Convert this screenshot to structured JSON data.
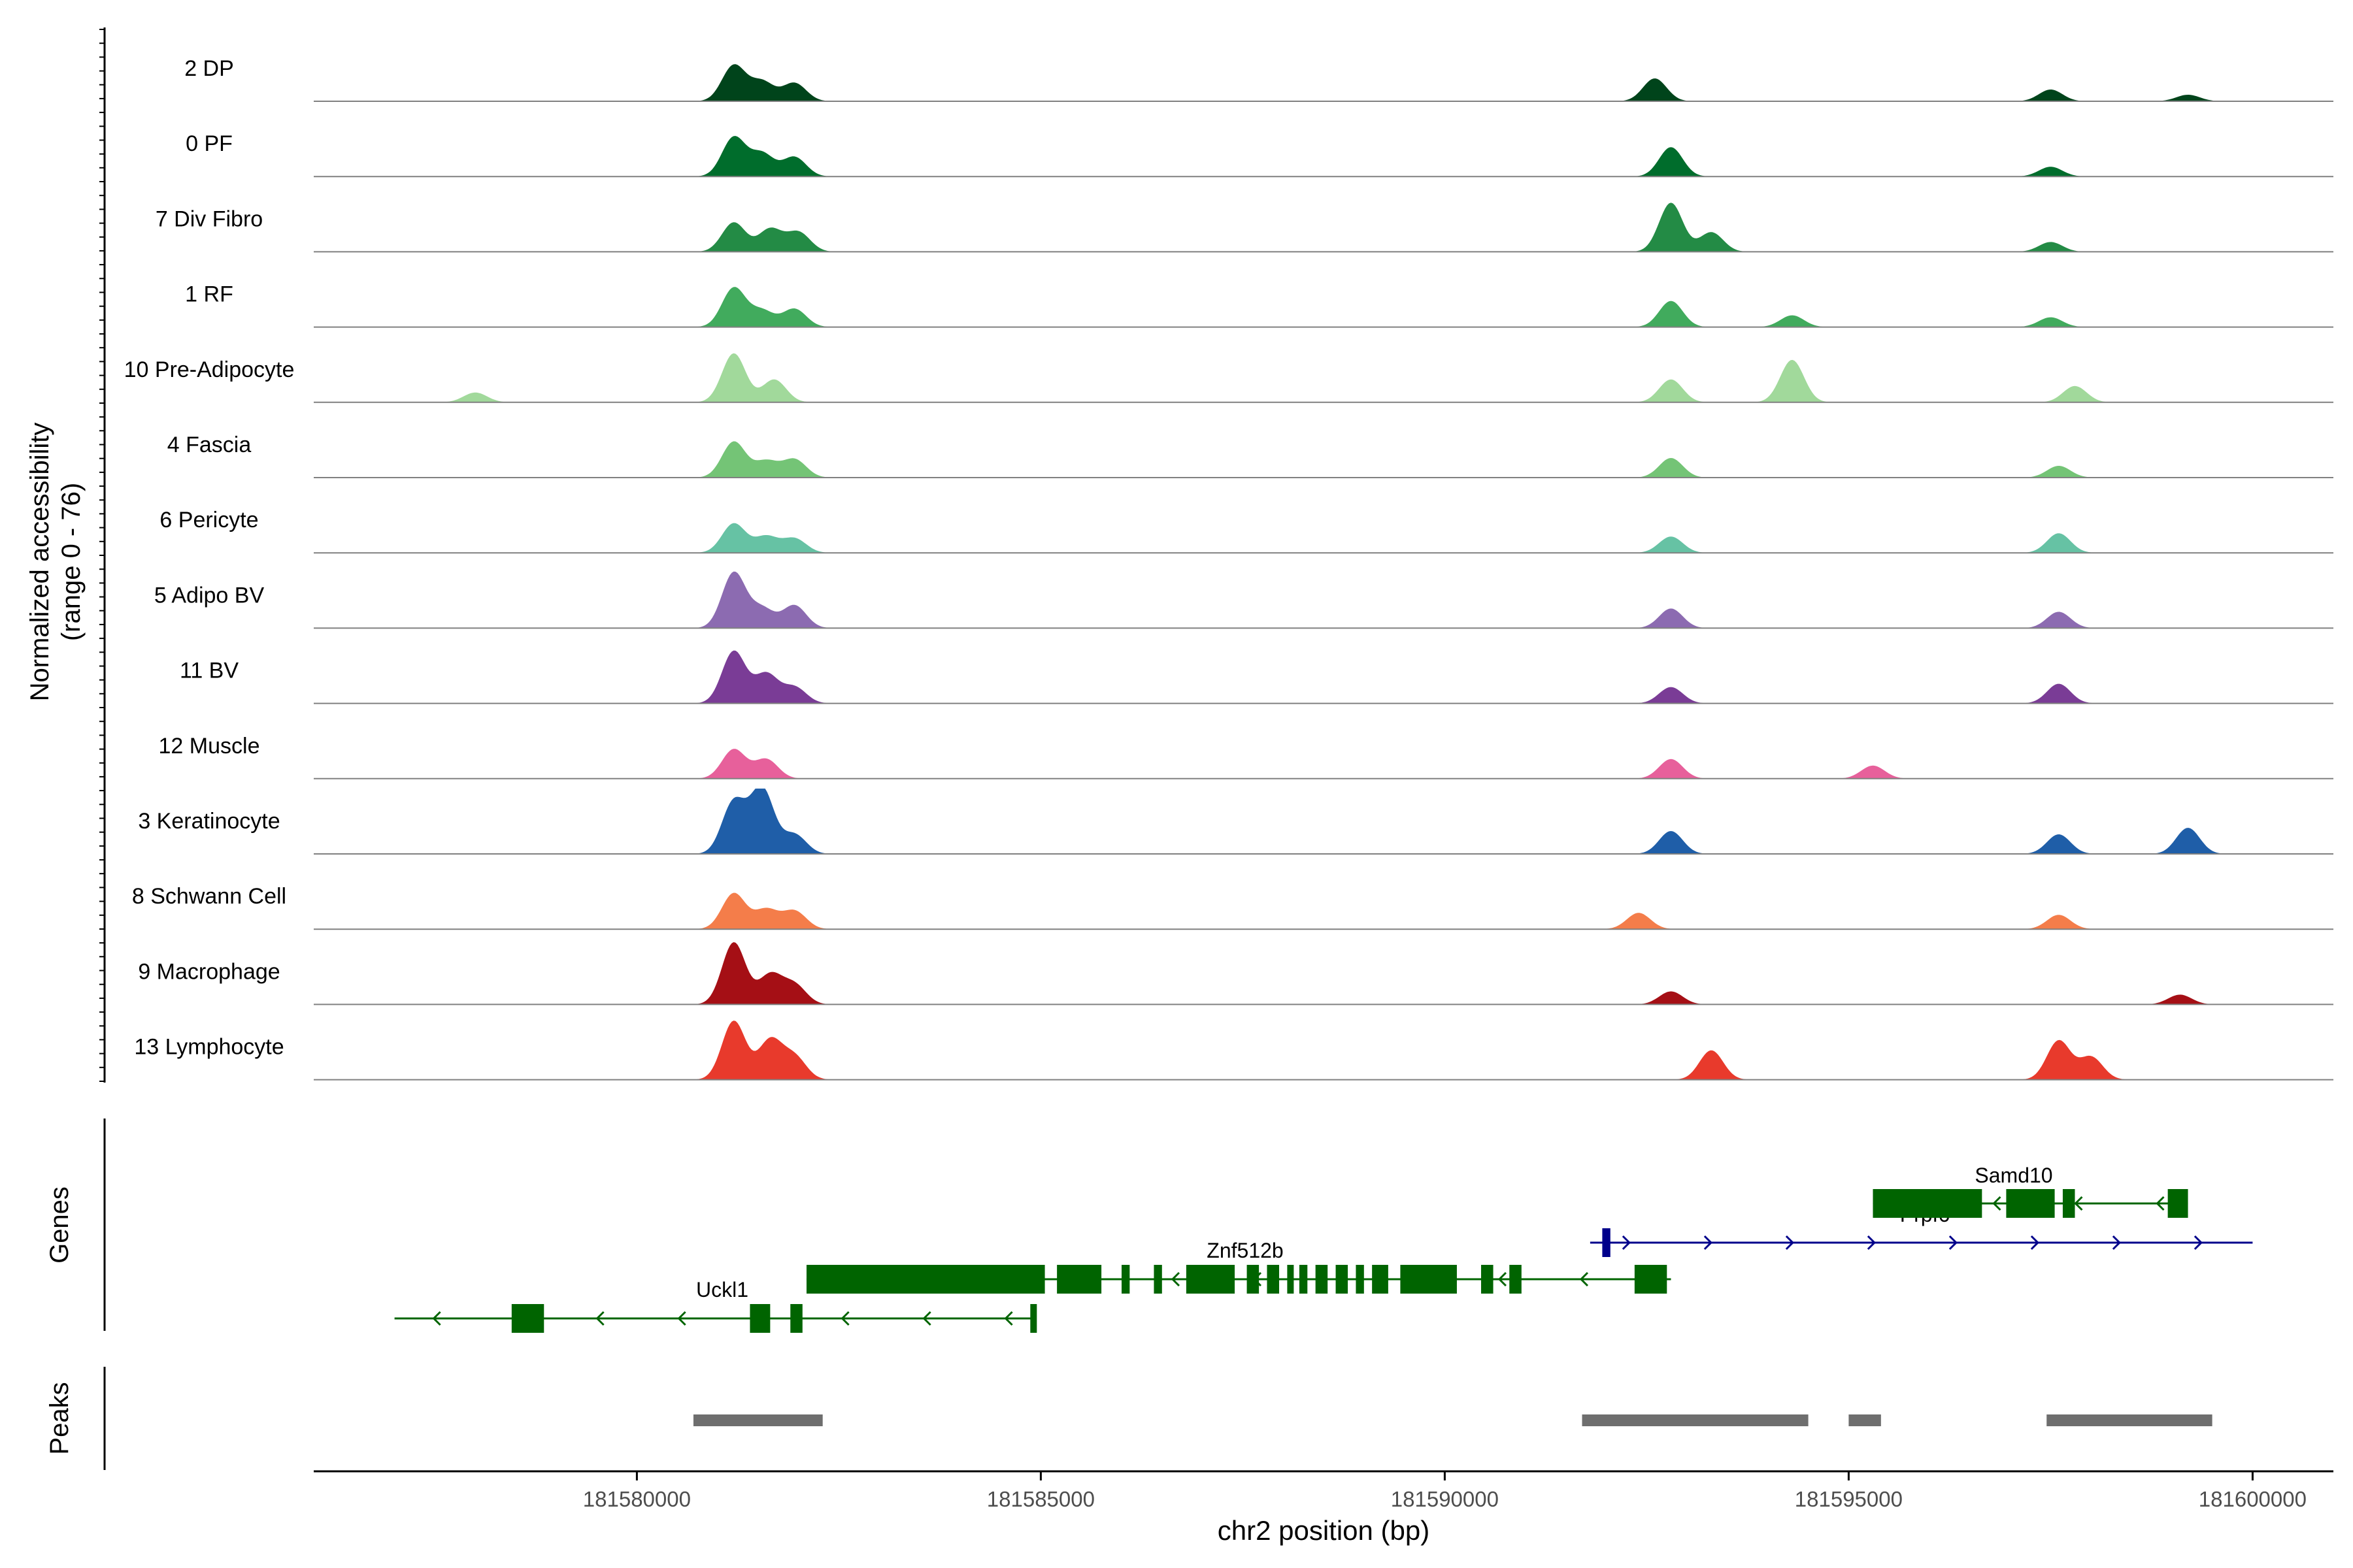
{
  "chart_data": {
    "type": "area",
    "title": "",
    "xlabel": "chr2 position (bp)",
    "ylabel": "Normalized accessibility",
    "ylabel_range": "(range 0 - 76)",
    "yrange": [
      0,
      76
    ],
    "xlim": [
      181576000,
      181601000
    ],
    "xticks": [
      {
        "value": 181580000,
        "label": "181580000"
      },
      {
        "value": 181585000,
        "label": "181585000"
      },
      {
        "value": 181590000,
        "label": "181590000"
      },
      {
        "value": 181595000,
        "label": "181595000"
      },
      {
        "value": 181600000,
        "label": "181600000"
      }
    ],
    "track_labels": {
      "genes": "Genes",
      "peaks": "Peaks"
    },
    "series": [
      {
        "name": "2 DP",
        "color": "#00441b",
        "peaks": [
          [
            181581200,
            0.55
          ],
          [
            181581550,
            0.3
          ],
          [
            181581950,
            0.28
          ],
          [
            181592600,
            0.35
          ],
          [
            181597500,
            0.18
          ],
          [
            181599200,
            0.1
          ]
        ]
      },
      {
        "name": "0 PF",
        "color": "#006d2c",
        "peaks": [
          [
            181581200,
            0.6
          ],
          [
            181581550,
            0.35
          ],
          [
            181581950,
            0.3
          ],
          [
            181592800,
            0.45
          ],
          [
            181597500,
            0.15
          ]
        ]
      },
      {
        "name": "7 Div Fibro",
        "color": "#238b45",
        "peaks": [
          [
            181581200,
            0.45
          ],
          [
            181581650,
            0.35
          ],
          [
            181582000,
            0.3
          ],
          [
            181592800,
            0.75
          ],
          [
            181593300,
            0.3
          ],
          [
            181597500,
            0.15
          ]
        ]
      },
      {
        "name": "1 RF",
        "color": "#41ab5d",
        "peaks": [
          [
            181581200,
            0.6
          ],
          [
            181581550,
            0.25
          ],
          [
            181581950,
            0.28
          ],
          [
            181592800,
            0.4
          ],
          [
            181594300,
            0.18
          ],
          [
            181597500,
            0.15
          ]
        ]
      },
      {
        "name": "10 Pre-Adipocyte",
        "color": "#a1d99b",
        "peaks": [
          [
            181578000,
            0.15
          ],
          [
            181581200,
            0.75
          ],
          [
            181581700,
            0.35
          ],
          [
            181592800,
            0.35
          ],
          [
            181594300,
            0.65
          ],
          [
            181597800,
            0.25
          ]
        ]
      },
      {
        "name": "4 Fascia",
        "color": "#74c476",
        "peaks": [
          [
            181581200,
            0.55
          ],
          [
            181581600,
            0.25
          ],
          [
            181581950,
            0.28
          ],
          [
            181592800,
            0.3
          ],
          [
            181597600,
            0.18
          ]
        ]
      },
      {
        "name": "6 Pericyte",
        "color": "#66c2a4",
        "peaks": [
          [
            181581200,
            0.45
          ],
          [
            181581600,
            0.25
          ],
          [
            181581950,
            0.22
          ],
          [
            181592800,
            0.25
          ],
          [
            181597600,
            0.3
          ]
        ]
      },
      {
        "name": "5 Adipo BV",
        "color": "#8c6bb1",
        "peaks": [
          [
            181581200,
            0.85
          ],
          [
            181581550,
            0.3
          ],
          [
            181581950,
            0.35
          ],
          [
            181592800,
            0.3
          ],
          [
            181597600,
            0.25
          ]
        ]
      },
      {
        "name": "11 BV",
        "color": "#7a3c96",
        "peaks": [
          [
            181581200,
            0.8
          ],
          [
            181581600,
            0.45
          ],
          [
            181581950,
            0.25
          ],
          [
            181592800,
            0.25
          ],
          [
            181597600,
            0.3
          ]
        ]
      },
      {
        "name": "12 Muscle",
        "color": "#e7609b",
        "peaks": [
          [
            181581200,
            0.45
          ],
          [
            181581600,
            0.3
          ],
          [
            181592800,
            0.3
          ],
          [
            181595300,
            0.2
          ]
        ]
      },
      {
        "name": "3 Keratinocyte",
        "color": "#1f5ea8",
        "peaks": [
          [
            181581200,
            0.8
          ],
          [
            181581550,
            1.0
          ],
          [
            181581950,
            0.3
          ],
          [
            181592800,
            0.35
          ],
          [
            181597600,
            0.3
          ],
          [
            181599200,
            0.4
          ]
        ]
      },
      {
        "name": "8 Schwann Cell",
        "color": "#f47d4a",
        "peaks": [
          [
            181581200,
            0.55
          ],
          [
            181581600,
            0.3
          ],
          [
            181581950,
            0.28
          ],
          [
            181592400,
            0.25
          ],
          [
            181597600,
            0.22
          ]
        ]
      },
      {
        "name": "9 Macrophage",
        "color": "#a50f15",
        "peaks": [
          [
            181581200,
            0.95
          ],
          [
            181581650,
            0.45
          ],
          [
            181581950,
            0.3
          ],
          [
            181592800,
            0.2
          ],
          [
            181599100,
            0.15
          ]
        ]
      },
      {
        "name": "13 Lymphocyte",
        "color": "#e83a2c",
        "peaks": [
          [
            181581200,
            0.9
          ],
          [
            181581650,
            0.6
          ],
          [
            181581950,
            0.35
          ],
          [
            181593300,
            0.45
          ],
          [
            181597600,
            0.6
          ],
          [
            181598000,
            0.35
          ]
        ]
      }
    ],
    "genes": [
      {
        "name": "Uckl1",
        "strand": "-",
        "color": "#006400",
        "start": 181577000,
        "end": 181584900,
        "exons": [
          [
            181578450,
            181578850
          ],
          [
            181581400,
            181581650
          ],
          [
            181581900,
            181582050
          ],
          [
            181584870,
            181584920
          ]
        ]
      },
      {
        "name": "Znf512b",
        "strand": "-",
        "color": "#006400",
        "start": 181582100,
        "end": 181592800,
        "exons": [
          [
            181582100,
            181585050
          ],
          [
            181585200,
            181585750
          ],
          [
            181586000,
            181586100
          ],
          [
            181586400,
            181586500
          ],
          [
            181586800,
            181587400
          ],
          [
            181587550,
            181587700
          ],
          [
            181587800,
            181587950
          ],
          [
            181588050,
            181588100
          ],
          [
            181588200,
            181588300
          ],
          [
            181588400,
            181588550
          ],
          [
            181588650,
            181588800
          ],
          [
            181588900,
            181589000
          ],
          [
            181589100,
            181589300
          ],
          [
            181589450,
            181590150
          ],
          [
            181590450,
            181590600
          ],
          [
            181590800,
            181590950
          ],
          [
            181592350,
            181592750
          ]
        ]
      },
      {
        "name": "Prpf6",
        "strand": "+",
        "color": "#00008b",
        "start": 181591800,
        "end": 181600000,
        "exons": [
          [
            181591950,
            181592050
          ]
        ]
      },
      {
        "name": "Samd10",
        "strand": "-",
        "color": "#006400",
        "start": 181595300,
        "end": 181599200,
        "exons": [
          [
            181595300,
            181596650
          ],
          [
            181596950,
            181597550
          ],
          [
            181597650,
            181597800
          ],
          [
            181598950,
            181599200
          ]
        ]
      }
    ],
    "peaks_track": [
      [
        181580700,
        181582300
      ],
      [
        181591700,
        181594500
      ],
      [
        181595000,
        181595400
      ],
      [
        181597450,
        181599500
      ]
    ]
  }
}
